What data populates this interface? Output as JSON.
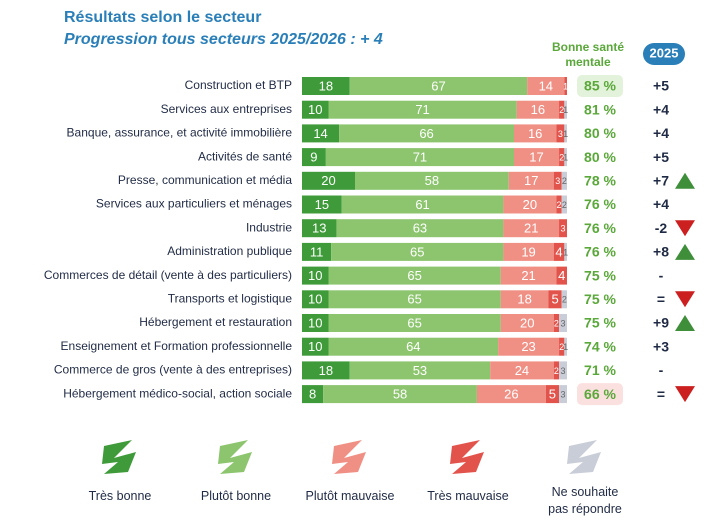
{
  "chart_data": {
    "type": "bar",
    "orientation": "horizontal",
    "stacked": true,
    "title": "Résultats selon le secteur",
    "subtitle": "Progression tous secteurs 2025/2026 : + 4",
    "categories": [
      "Construction et BTP",
      "Services aux entreprises",
      "Banque, assurance, et activité immobilière",
      "Activités de santé",
      "Presse, communication et média",
      "Services aux particuliers et ménages",
      "Industrie",
      "Administration publique",
      "Commerces de détail (vente à des particuliers)",
      "Transports et logistique",
      "Hébergement et restauration",
      "Enseignement et Formation professionnelle",
      "Commerce de gros (vente à des entreprises)",
      "Hébergement médico-social, action sociale"
    ],
    "xlim": [
      0,
      100
    ],
    "series": [
      {
        "name": "Très bonne",
        "color": "#3f9b3a",
        "values": [
          18,
          10,
          14,
          9,
          20,
          15,
          13,
          11,
          10,
          10,
          10,
          10,
          18,
          8
        ]
      },
      {
        "name": "Plutôt bonne",
        "color": "#8cc56e",
        "values": [
          67,
          71,
          66,
          71,
          58,
          61,
          63,
          65,
          65,
          65,
          65,
          64,
          53,
          58
        ]
      },
      {
        "name": "Plutôt mauvaise",
        "color": "#f09085",
        "values": [
          14,
          16,
          16,
          17,
          17,
          20,
          21,
          19,
          21,
          18,
          20,
          23,
          24,
          26
        ]
      },
      {
        "name": "Très mauvaise",
        "color": "#e2544b",
        "values": [
          1,
          2,
          3,
          2,
          3,
          2,
          3,
          4,
          4,
          5,
          2,
          2,
          2,
          5
        ]
      },
      {
        "name": "Ne souhaite pas répondre",
        "color": "#c9cdd8",
        "values": [
          0,
          1,
          1,
          1,
          2,
          2,
          0,
          1,
          0,
          2,
          3,
          1,
          3,
          3
        ]
      }
    ],
    "good_health": {
      "header": "Bonne santé mentale",
      "values": [
        85,
        81,
        80,
        80,
        78,
        76,
        76,
        76,
        75,
        75,
        75,
        74,
        71,
        66
      ],
      "value_labels": [
        "85 %",
        "81 %",
        "80 %",
        "80 %",
        "78 %",
        "76 %",
        "76 %",
        "76 %",
        "75 %",
        "75 %",
        "75 %",
        "74 %",
        "71 %",
        "66 %"
      ],
      "highlight": {
        "0": "#e3f2da",
        "13": "#fbe0e0"
      }
    },
    "change": {
      "header": "2025",
      "labels": [
        "+5",
        "+4",
        "+4",
        "+5",
        "+7",
        "+4",
        "-2",
        "+8",
        "-",
        "=",
        "+9",
        "+3",
        "-",
        "="
      ],
      "trend": [
        null,
        null,
        null,
        null,
        "up",
        null,
        "down",
        "up",
        null,
        "down",
        "up",
        null,
        null,
        "down"
      ]
    }
  }
}
